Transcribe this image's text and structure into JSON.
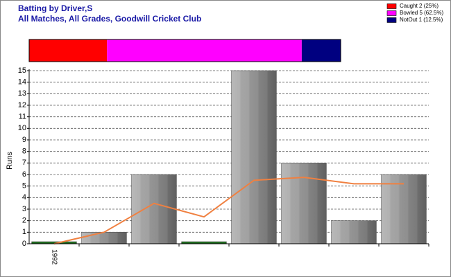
{
  "chart_data": [
    {
      "type": "stacked-bar",
      "title": "Batting by Driver,S",
      "subtitle": "All Matches, All Grades, Goodwill Cricket Club",
      "legend": "top-right",
      "series": [
        {
          "name": "Caught 2 (25%)",
          "color": "#ff0000",
          "values": [
            25
          ]
        },
        {
          "name": "Bowled 5 (62.5%)",
          "color": "#ff00ff",
          "values": [
            62.5
          ]
        },
        {
          "name": "NotOut 1 (12.5%)",
          "color": "#000080",
          "values": [
            12.5
          ]
        }
      ]
    },
    {
      "type": "bar",
      "y_label": "Runs",
      "categories": [
        "1992",
        null,
        null,
        null,
        null,
        null,
        null,
        null
      ],
      "series": [
        {
          "type": "bar",
          "color": "#a0a0a0",
          "zero_color": "#1e6e1e",
          "values": [
            0,
            1,
            6,
            0,
            15,
            7,
            2,
            6
          ]
        },
        {
          "type": "line",
          "color": "#f08040",
          "values": [
            0,
            1,
            3.5,
            2.33,
            5.5,
            5.75,
            5.2,
            5.2
          ]
        }
      ],
      "ylim": [
        0,
        15
      ],
      "yticks": [
        0,
        1,
        2,
        3,
        4,
        5,
        6,
        7,
        8,
        9,
        10,
        11,
        12,
        13,
        14,
        15
      ],
      "grid": true
    }
  ]
}
